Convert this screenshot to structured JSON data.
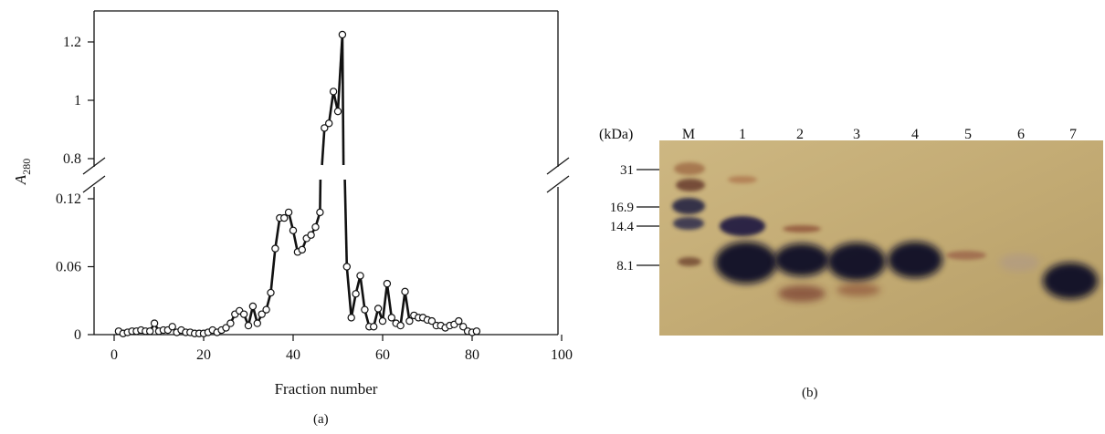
{
  "panel_a_label": "(a)",
  "panel_b_label": "(b)",
  "chart_data": [
    {
      "type": "line",
      "marker": "open-circle",
      "xlabel": "Fraction number",
      "ylabel": "A",
      "ylabel_subscript": "280",
      "xlim": [
        0,
        100
      ],
      "xticks": [
        "0",
        "20",
        "40",
        "60",
        "80",
        "100"
      ],
      "ylim_lower": [
        0,
        0.13
      ],
      "ylim_upper": [
        0.8,
        1.25
      ],
      "yticks_lower": [
        "0",
        "0.06",
        "0.12"
      ],
      "yticks_upper": [
        "0.8",
        "1",
        "1.2"
      ],
      "axis_break": true,
      "x": [
        1,
        2,
        3,
        4,
        5,
        6,
        7,
        8,
        9,
        10,
        11,
        12,
        13,
        14,
        15,
        16,
        17,
        18,
        19,
        20,
        21,
        22,
        23,
        24,
        25,
        26,
        27,
        28,
        29,
        30,
        31,
        32,
        33,
        34,
        35,
        36,
        37,
        38,
        39,
        40,
        41,
        42,
        43,
        44,
        45,
        46,
        47,
        48,
        49,
        50,
        51,
        52,
        53,
        54,
        55,
        56,
        57,
        58,
        59,
        60,
        61,
        62,
        63,
        64,
        65,
        66,
        67,
        68,
        69,
        70,
        71,
        72,
        73,
        74,
        75,
        76,
        77,
        78,
        79,
        80,
        81
      ],
      "y": [
        0.003,
        0.001,
        0.002,
        0.003,
        0.003,
        0.004,
        0.003,
        0.003,
        0.01,
        0.003,
        0.004,
        0.004,
        0.007,
        0.002,
        0.004,
        0.002,
        0.002,
        0.001,
        0.001,
        0.001,
        0.002,
        0.004,
        0.002,
        0.004,
        0.006,
        0.01,
        0.018,
        0.021,
        0.018,
        0.008,
        0.025,
        0.01,
        0.018,
        0.022,
        0.037,
        0.076,
        0.103,
        0.103,
        0.108,
        0.092,
        0.073,
        0.075,
        0.085,
        0.088,
        0.095,
        0.108,
        0.905,
        0.921,
        1.03,
        0.962,
        1.225,
        0.06,
        0.015,
        0.036,
        0.052,
        0.022,
        0.007,
        0.007,
        0.023,
        0.012,
        0.045,
        0.015,
        0.01,
        0.008,
        0.038,
        0.012,
        0.017,
        0.015,
        0.015,
        0.013,
        0.012,
        0.008,
        0.008,
        0.006,
        0.008,
        0.009,
        0.012,
        0.007,
        0.003,
        0.002,
        0.003
      ]
    },
    {
      "type": "gel",
      "units": "(kDa)",
      "lanes": [
        "M",
        "1",
        "2",
        "3",
        "4",
        "5",
        "6",
        "7"
      ],
      "markers": [
        "31",
        "16.9",
        "14.4",
        "8.1"
      ]
    }
  ]
}
